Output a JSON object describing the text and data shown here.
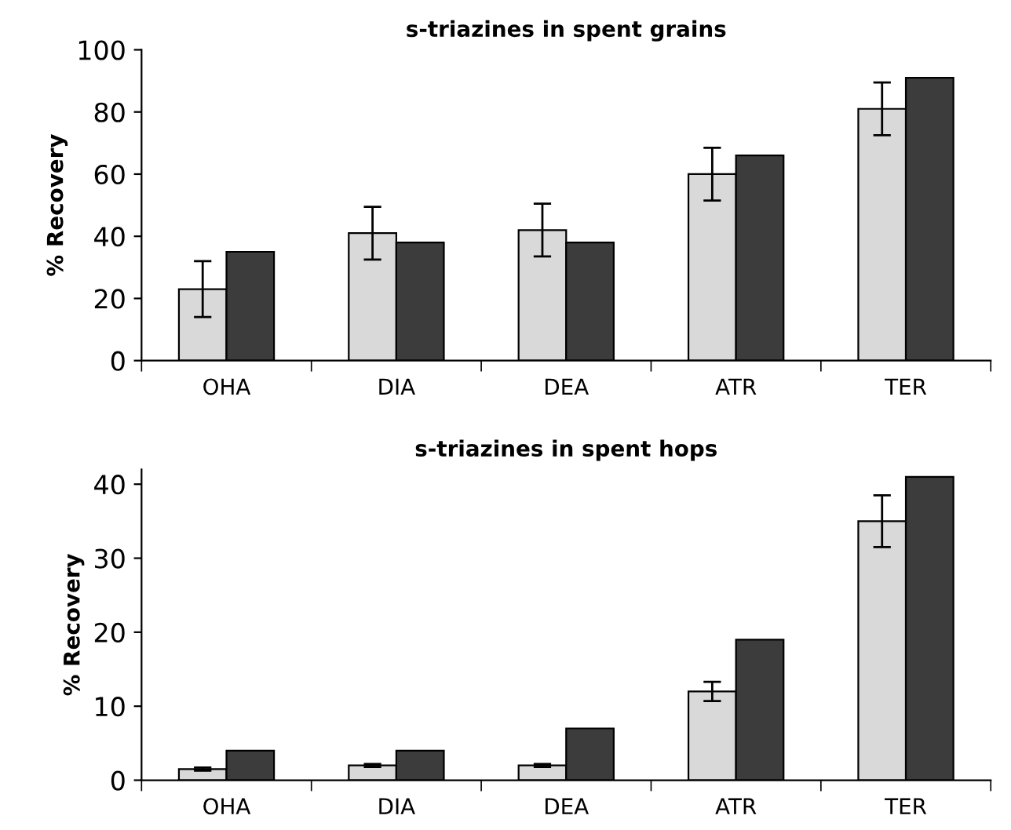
{
  "chart_data": [
    {
      "type": "bar",
      "title": "s-triazines in spent grains",
      "ylabel": "% Recovery",
      "categories": [
        "OHA",
        "DIA",
        "DEA",
        "ATR",
        "TER"
      ],
      "ylim": [
        0,
        100
      ],
      "yticks": [
        0,
        20,
        40,
        60,
        80,
        100
      ],
      "grid": false,
      "legend": false,
      "series": [
        {
          "color": "#d9d9d9",
          "values": [
            23,
            41,
            42,
            60,
            81
          ],
          "errors": [
            9,
            8.5,
            8.5,
            8.5,
            8.5
          ]
        },
        {
          "color": "#3c3c3c",
          "values": [
            35,
            38,
            38,
            66,
            91
          ]
        }
      ]
    },
    {
      "type": "bar",
      "title": "s-triazines in spent hops",
      "ylabel": "% Recovery",
      "categories": [
        "OHA",
        "DIA",
        "DEA",
        "ATR",
        "TER"
      ],
      "ylim": [
        0,
        42
      ],
      "yticks": [
        0,
        10,
        20,
        30,
        40
      ],
      "grid": false,
      "legend": false,
      "series": [
        {
          "color": "#d9d9d9",
          "values": [
            1.5,
            2,
            2,
            12,
            35
          ],
          "errors": [
            0.2,
            0.2,
            0.2,
            1.3,
            3.5
          ]
        },
        {
          "color": "#3c3c3c",
          "values": [
            4,
            4,
            7,
            19,
            41
          ]
        }
      ]
    }
  ]
}
